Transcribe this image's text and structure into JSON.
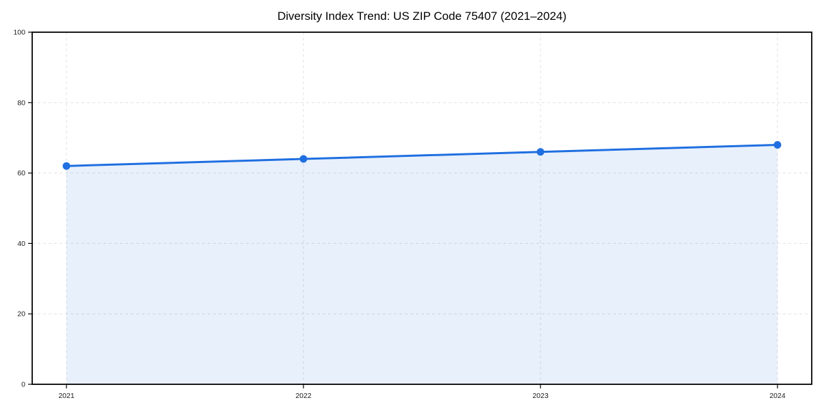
{
  "chart_data": {
    "type": "line",
    "title": "Diversity Index Trend: US ZIP Code 75407 (2021–2024)",
    "categories": [
      "2021",
      "2022",
      "2023",
      "2024"
    ],
    "values": [
      62,
      64,
      66,
      68
    ],
    "xlabel": "",
    "ylabel": "",
    "ylim": [
      0,
      100
    ],
    "yticks": [
      0,
      20,
      40,
      60,
      80,
      100
    ],
    "grid": true,
    "grid_style": "dashed",
    "legend_position": "none",
    "area_fill": true,
    "markers": true,
    "colors": {
      "line": "#1f6fe0",
      "marker": "#1f6fe0",
      "fill": "rgba(31,111,224,0.10)",
      "grid": "#e0e0e0",
      "axis": "#000000",
      "tick_label": "#1a1a1a",
      "background": "#ffffff"
    }
  }
}
